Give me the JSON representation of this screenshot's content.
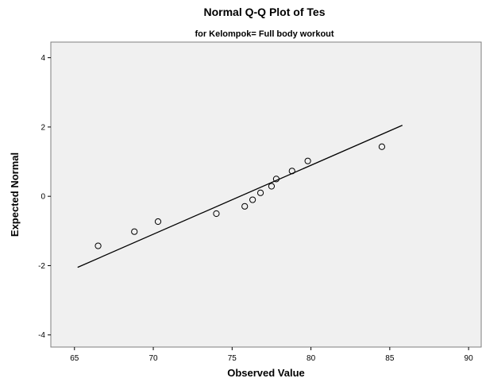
{
  "chart_data": {
    "type": "scatter",
    "title": "Normal Q-Q Plot of Tes",
    "subtitle": "for Kelompok= Full body workout",
    "xlabel": "Observed Value",
    "ylabel": "Expected Normal",
    "xlim": [
      63.5,
      90.8
    ],
    "ylim": [
      -4.35,
      4.45
    ],
    "xticks": [
      65,
      70,
      75,
      80,
      85,
      90
    ],
    "yticks": [
      -4,
      -2,
      0,
      2,
      4
    ],
    "grid": false,
    "legend": "none",
    "points": {
      "x": [
        66.5,
        68.8,
        70.3,
        74.0,
        75.8,
        76.3,
        76.8,
        77.5,
        77.8,
        78.8,
        79.8,
        84.5
      ],
      "y": [
        -1.43,
        -1.02,
        -0.73,
        -0.5,
        -0.29,
        -0.1,
        0.1,
        0.29,
        0.5,
        0.73,
        1.02,
        1.43
      ]
    },
    "reference_line": {
      "x": [
        65.2,
        85.8
      ],
      "y": [
        -2.05,
        2.05
      ]
    },
    "colors": {
      "plot_background": "#f0f0f0",
      "line": "#000000",
      "marker_stroke": "#000000"
    }
  }
}
